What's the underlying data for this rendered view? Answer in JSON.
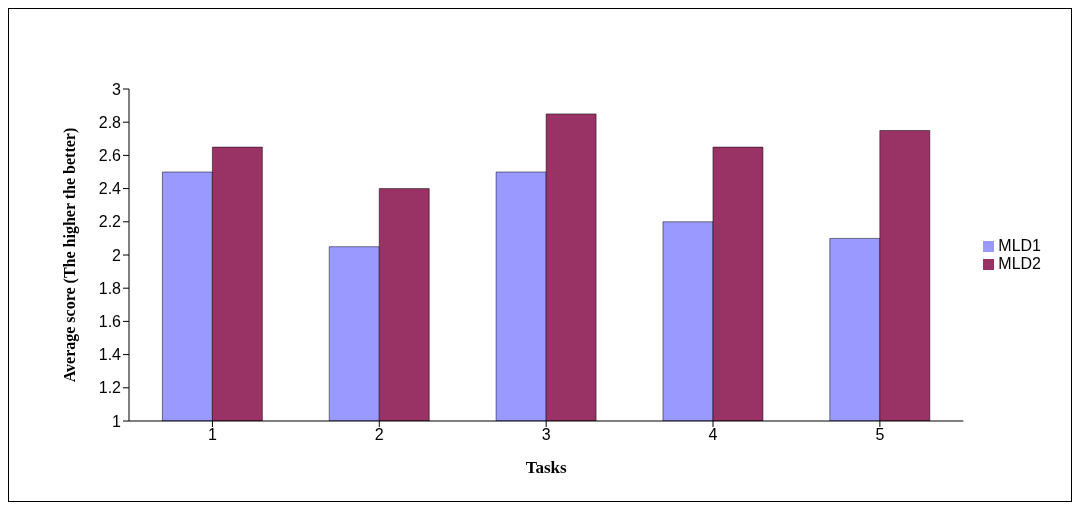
{
  "chart_data": {
    "type": "bar",
    "xlabel": "Tasks",
    "ylabel": "Average score (The higher the better)",
    "categories": [
      "1",
      "2",
      "3",
      "4",
      "5"
    ],
    "series": [
      {
        "name": "MLD1",
        "color": "#9999ff",
        "values": [
          2.5,
          2.05,
          2.5,
          2.2,
          2.1
        ]
      },
      {
        "name": "MLD2",
        "color": "#993366",
        "values": [
          2.65,
          2.4,
          2.85,
          2.65,
          2.75
        ]
      }
    ],
    "ylim": [
      1,
      3
    ],
    "yticks": [
      1,
      1.2,
      1.4,
      1.6,
      1.8,
      2,
      2.2,
      2.4,
      2.6,
      2.8,
      3
    ],
    "grid": false,
    "legend": "right"
  }
}
